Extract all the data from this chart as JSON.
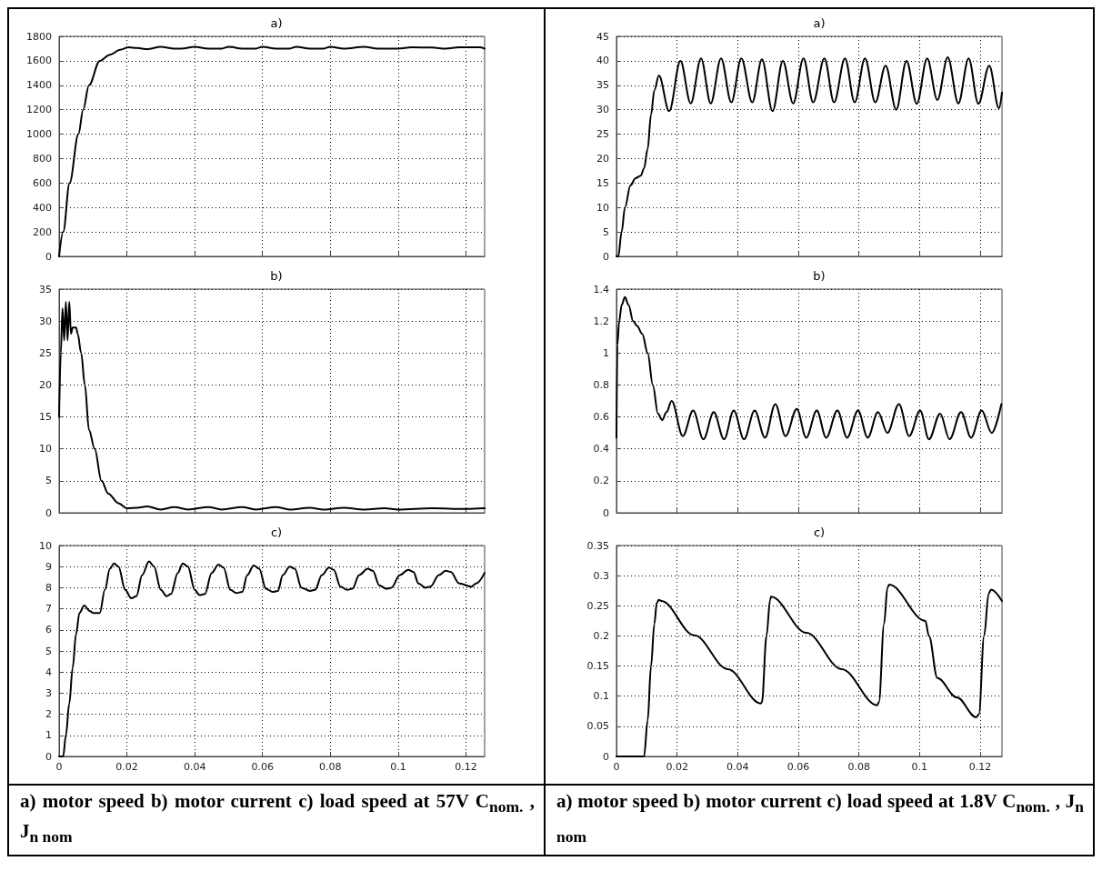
{
  "chart_data": [
    {
      "type": "line",
      "title": "a)",
      "xlim": [
        0,
        0.1255
      ],
      "xticks": [
        0,
        0.02,
        0.04,
        0.06,
        0.08,
        0.1,
        0.12
      ],
      "ylim": [
        0,
        1800
      ],
      "yticks": [
        0,
        200,
        400,
        600,
        800,
        1000,
        1200,
        1400,
        1600,
        1800
      ],
      "grid": true,
      "tick_labels": "y",
      "marker": "none",
      "line_style": "solid",
      "series": [
        {
          "color": "#000000",
          "x": [
            0,
            0.0012,
            0.0031,
            0.0057,
            0.0071,
            0.0088,
            0.012,
            0.015,
            0.018,
            0.0205,
            0.023,
            0.026,
            0.03,
            0.034,
            0.036,
            0.04,
            0.044,
            0.048,
            0.05,
            0.054,
            0.058,
            0.06,
            0.064,
            0.068,
            0.07,
            0.074,
            0.078,
            0.08,
            0.084,
            0.09,
            0.094,
            0.1,
            0.104,
            0.11,
            0.114,
            0.118,
            0.124,
            0.1255
          ],
          "values": [
            0,
            200,
            600,
            1000,
            1200,
            1400,
            1600,
            1650,
            1690,
            1710,
            1705,
            1695,
            1715,
            1700,
            1700,
            1715,
            1700,
            1700,
            1715,
            1700,
            1700,
            1715,
            1700,
            1700,
            1715,
            1700,
            1700,
            1715,
            1700,
            1715,
            1700,
            1700,
            1710,
            1708,
            1700,
            1710,
            1710,
            1700
          ]
        }
      ]
    },
    {
      "type": "line",
      "title": "b)",
      "xlim": [
        0,
        0.1255
      ],
      "xticks": [
        0,
        0.02,
        0.04,
        0.06,
        0.08,
        0.1,
        0.12
      ],
      "ylim": [
        0,
        35
      ],
      "yticks": [
        0,
        5,
        10,
        15,
        20,
        25,
        30,
        35
      ],
      "grid": true,
      "tick_labels": "y",
      "marker": "none",
      "line_style": "solid",
      "series": [
        {
          "color": "#000000",
          "x": [
            0,
            0.0005,
            0.001,
            0.0015,
            0.002,
            0.0025,
            0.003,
            0.0035,
            0.004,
            0.005,
            0.0055,
            0.0065,
            0.0076,
            0.0088,
            0.0105,
            0.0125,
            0.0145,
            0.0175,
            0.02,
            0.023,
            0.026,
            0.03,
            0.034,
            0.038,
            0.044,
            0.048,
            0.054,
            0.058,
            0.064,
            0.068,
            0.074,
            0.078,
            0.084,
            0.09,
            0.096,
            0.1,
            0.11,
            0.12,
            0.1255
          ],
          "values": [
            15,
            25,
            32,
            27,
            33,
            27,
            33,
            28,
            29,
            29,
            28,
            25,
            20,
            13,
            10,
            5,
            3,
            1.5,
            0.7,
            0.8,
            1,
            0.5,
            0.9,
            0.5,
            0.9,
            0.5,
            0.9,
            0.5,
            0.9,
            0.5,
            0.8,
            0.5,
            0.8,
            0.5,
            0.7,
            0.5,
            0.7,
            0.6,
            0.7
          ]
        }
      ]
    },
    {
      "type": "line",
      "title": "c)",
      "xlim": [
        0,
        0.1255
      ],
      "xticks": [
        0,
        0.02,
        0.04,
        0.06,
        0.08,
        0.1,
        0.12
      ],
      "ylim": [
        0,
        10
      ],
      "yticks": [
        0,
        1,
        2,
        3,
        4,
        5,
        6,
        7,
        8,
        9,
        10
      ],
      "grid": true,
      "marker": "none",
      "line_style": "solid",
      "annotations": [
        "a) motor speed b) motor current c) load speed at 57V C$_{nom.}$ , J$_{n nom}$"
      ],
      "series": [
        {
          "color": "#000000",
          "x": [
            0,
            0.0012,
            0.002,
            0.003,
            0.004,
            0.005,
            0.006,
            0.0074,
            0.009,
            0.01,
            0.012,
            0.0135,
            0.015,
            0.0162,
            0.0175,
            0.0195,
            0.0213,
            0.0228,
            0.0245,
            0.0265,
            0.028,
            0.03,
            0.0317,
            0.033,
            0.035,
            0.0365,
            0.038,
            0.04,
            0.0414,
            0.043,
            0.045,
            0.047,
            0.0485,
            0.0505,
            0.0523,
            0.054,
            0.0555,
            0.0574,
            0.059,
            0.061,
            0.063,
            0.0645,
            0.066,
            0.068,
            0.0695,
            0.0715,
            0.074,
            0.0755,
            0.0775,
            0.0796,
            0.081,
            0.083,
            0.085,
            0.0865,
            0.0885,
            0.091,
            0.0925,
            0.0945,
            0.0966,
            0.098,
            0.1005,
            0.103,
            0.1045,
            0.106,
            0.108,
            0.1095,
            0.112,
            0.114,
            0.1155,
            0.118,
            0.1216,
            0.123,
            0.1255
          ],
          "values": [
            0,
            0,
            1,
            2.5,
            4.2,
            5.8,
            6.8,
            7.15,
            6.9,
            6.8,
            6.8,
            7.9,
            8.9,
            9.15,
            9,
            7.9,
            7.5,
            7.6,
            8.6,
            9.25,
            9,
            7.9,
            7.6,
            7.7,
            8.7,
            9.15,
            9,
            7.9,
            7.65,
            7.7,
            8.7,
            9.1,
            8.95,
            7.9,
            7.75,
            7.8,
            8.6,
            9.05,
            8.9,
            7.95,
            7.8,
            7.85,
            8.6,
            9,
            8.9,
            8,
            7.85,
            7.9,
            8.6,
            8.95,
            8.85,
            8.05,
            7.9,
            7.95,
            8.6,
            8.9,
            8.8,
            8.1,
            7.95,
            8,
            8.6,
            8.85,
            8.75,
            8.2,
            8,
            8.05,
            8.6,
            8.8,
            8.75,
            8.2,
            8.05,
            8.2,
            8.7
          ]
        }
      ]
    },
    {
      "type": "line",
      "title": "a)",
      "xlim": [
        0,
        0.1272
      ],
      "xticks": [
        0,
        0.02,
        0.04,
        0.06,
        0.08,
        0.1,
        0.12
      ],
      "ylim": [
        0,
        45
      ],
      "yticks": [
        0,
        5,
        10,
        15,
        20,
        25,
        30,
        35,
        40,
        45
      ],
      "grid": true,
      "tick_labels": "y",
      "marker": "none",
      "line_style": "solid",
      "series": [
        {
          "color": "#000000",
          "x": [
            0,
            0.0006,
            0.0017,
            0.0028,
            0.0046,
            0.0063,
            0.008,
            0.0091,
            0.0103,
            0.0114,
            0.0125,
            0.014,
            0.0174,
            0.0211,
            0.0245,
            0.0279,
            0.0311,
            0.0345,
            0.0379,
            0.0412,
            0.0448,
            0.048,
            0.0515,
            0.0549,
            0.0583,
            0.0617,
            0.0649,
            0.0686,
            0.0718,
            0.0754,
            0.0786,
            0.082,
            0.0854,
            0.0888,
            0.0923,
            0.0957,
            0.0991,
            0.1025,
            0.1059,
            0.1093,
            0.1128,
            0.1162,
            0.1194,
            0.123,
            0.1262,
            0.1272
          ],
          "values": [
            0,
            0,
            5,
            10,
            14.5,
            16,
            16.5,
            18,
            22,
            29,
            34,
            37,
            29.7,
            40,
            31.3,
            40.5,
            31.3,
            40.5,
            31.5,
            40.5,
            31.5,
            40.3,
            29.7,
            40,
            31.3,
            40.5,
            31.5,
            40.5,
            31.5,
            40.5,
            31.5,
            40.5,
            31.5,
            39,
            30,
            40,
            31.2,
            40.5,
            32,
            40.7,
            31.3,
            40.5,
            31.2,
            39,
            30.3,
            33.5
          ]
        }
      ]
    },
    {
      "type": "line",
      "title": "b)",
      "xlim": [
        0,
        0.1272
      ],
      "xticks": [
        0,
        0.02,
        0.04,
        0.06,
        0.08,
        0.1,
        0.12
      ],
      "ylim": [
        0,
        1.4
      ],
      "yticks": [
        0,
        0.2,
        0.4,
        0.6,
        0.8,
        1,
        1.2,
        1.4
      ],
      "grid": true,
      "tick_labels": "y",
      "marker": "none",
      "line_style": "solid",
      "series": [
        {
          "color": "#000000",
          "x": [
            0,
            0.0003,
            0.0009,
            0.0017,
            0.0028,
            0.004,
            0.0055,
            0.0068,
            0.0085,
            0.0103,
            0.012,
            0.0137,
            0.0151,
            0.0165,
            0.0182,
            0.0219,
            0.0253,
            0.0287,
            0.0321,
            0.0355,
            0.0387,
            0.0421,
            0.0456,
            0.049,
            0.0524,
            0.0558,
            0.0595,
            0.0626,
            0.0661,
            0.0692,
            0.0729,
            0.0761,
            0.0797,
            0.0829,
            0.0863,
            0.0894,
            0.0932,
            0.0966,
            0.1002,
            0.1031,
            0.1068,
            0.1099,
            0.1137,
            0.117,
            0.1205,
            0.1238,
            0.127
          ],
          "values": [
            0.47,
            1.05,
            1.2,
            1.3,
            1.35,
            1.3,
            1.2,
            1.17,
            1.12,
            1,
            0.8,
            0.62,
            0.58,
            0.63,
            0.7,
            0.48,
            0.64,
            0.46,
            0.63,
            0.46,
            0.64,
            0.46,
            0.64,
            0.47,
            0.68,
            0.48,
            0.65,
            0.47,
            0.64,
            0.47,
            0.64,
            0.47,
            0.64,
            0.47,
            0.63,
            0.5,
            0.68,
            0.48,
            0.64,
            0.46,
            0.62,
            0.46,
            0.63,
            0.47,
            0.64,
            0.5,
            0.68
          ]
        }
      ]
    },
    {
      "type": "line",
      "title": "c)",
      "xlim": [
        0,
        0.1272
      ],
      "xticks": [
        0,
        0.02,
        0.04,
        0.06,
        0.08,
        0.1,
        0.12
      ],
      "ylim": [
        0,
        0.35
      ],
      "yticks": [
        0,
        0.05,
        0.1,
        0.15,
        0.2,
        0.25,
        0.3,
        0.35
      ],
      "grid": true,
      "marker": "none",
      "line_style": "solid",
      "annotations": [
        "a) motor speed b) motor current c) load speed at 1.8V C$_{nom.}$ , J$_{n nom}$"
      ],
      "series": [
        {
          "color": "#000000",
          "x": [
            0,
            0.0091,
            0.0103,
            0.0114,
            0.0125,
            0.0133,
            0.014,
            0.0148,
            0.0257,
            0.0367,
            0.0476,
            0.048,
            0.0495,
            0.0507,
            0.051,
            0.0627,
            0.0743,
            0.086,
            0.0866,
            0.0883,
            0.0894,
            0.09,
            0.1019,
            0.1031,
            0.1059,
            0.1123,
            0.1187,
            0.1196,
            0.1213,
            0.1228,
            0.1236,
            0.1272
          ],
          "values": [
            0,
            0,
            0.06,
            0.15,
            0.22,
            0.255,
            0.26,
            0.258,
            0.201,
            0.145,
            0.088,
            0.09,
            0.2,
            0.26,
            0.265,
            0.205,
            0.145,
            0.085,
            0.09,
            0.22,
            0.28,
            0.285,
            0.225,
            0.2,
            0.13,
            0.098,
            0.065,
            0.07,
            0.2,
            0.27,
            0.277,
            0.258
          ]
        }
      ]
    }
  ]
}
